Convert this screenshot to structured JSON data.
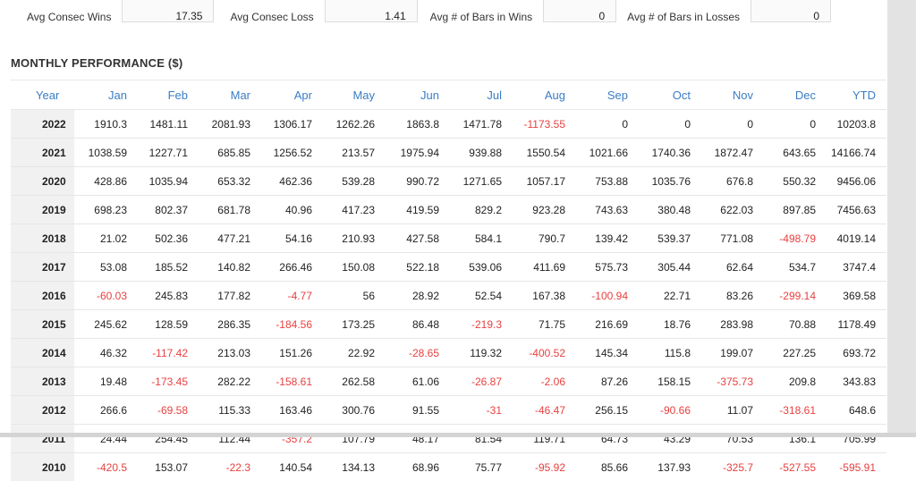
{
  "stats": [
    {
      "label": "Avg Consec Wins",
      "value": "17.35"
    },
    {
      "label": "Avg Consec Loss",
      "value": "1.41"
    },
    {
      "label": "Avg # of Bars in Wins",
      "value": "0"
    },
    {
      "label": "Avg # of Bars in Losses",
      "value": "0"
    }
  ],
  "section_title": "MONTHLY PERFORMANCE ($)",
  "colors": {
    "header": "#3b7dc4",
    "negative": "#e84040",
    "year_bg": "#f1f1f1"
  },
  "table": {
    "headers": [
      "Year",
      "Jan",
      "Feb",
      "Mar",
      "Apr",
      "May",
      "Jun",
      "Jul",
      "Aug",
      "Sep",
      "Oct",
      "Nov",
      "Dec",
      "YTD"
    ],
    "rows": [
      [
        "2022",
        "1910.3",
        "1481.11",
        "2081.93",
        "1306.17",
        "1262.26",
        "1863.8",
        "1471.78",
        "-1173.55",
        "0",
        "0",
        "0",
        "0",
        "10203.8"
      ],
      [
        "2021",
        "1038.59",
        "1227.71",
        "685.85",
        "1256.52",
        "213.57",
        "1975.94",
        "939.88",
        "1550.54",
        "1021.66",
        "1740.36",
        "1872.47",
        "643.65",
        "14166.74"
      ],
      [
        "2020",
        "428.86",
        "1035.94",
        "653.32",
        "462.36",
        "539.28",
        "990.72",
        "1271.65",
        "1057.17",
        "753.88",
        "1035.76",
        "676.8",
        "550.32",
        "9456.06"
      ],
      [
        "2019",
        "698.23",
        "802.37",
        "681.78",
        "40.96",
        "417.23",
        "419.59",
        "829.2",
        "923.28",
        "743.63",
        "380.48",
        "622.03",
        "897.85",
        "7456.63"
      ],
      [
        "2018",
        "21.02",
        "502.36",
        "477.21",
        "54.16",
        "210.93",
        "427.58",
        "584.1",
        "790.7",
        "139.42",
        "539.37",
        "771.08",
        "-498.79",
        "4019.14"
      ],
      [
        "2017",
        "53.08",
        "185.52",
        "140.82",
        "266.46",
        "150.08",
        "522.18",
        "539.06",
        "411.69",
        "575.73",
        "305.44",
        "62.64",
        "534.7",
        "3747.4"
      ],
      [
        "2016",
        "-60.03",
        "245.83",
        "177.82",
        "-4.77",
        "56",
        "28.92",
        "52.54",
        "167.38",
        "-100.94",
        "22.71",
        "83.26",
        "-299.14",
        "369.58"
      ],
      [
        "2015",
        "245.62",
        "128.59",
        "286.35",
        "-184.56",
        "173.25",
        "86.48",
        "-219.3",
        "71.75",
        "216.69",
        "18.76",
        "283.98",
        "70.88",
        "1178.49"
      ],
      [
        "2014",
        "46.32",
        "-117.42",
        "213.03",
        "151.26",
        "22.92",
        "-28.65",
        "119.32",
        "-400.52",
        "145.34",
        "115.8",
        "199.07",
        "227.25",
        "693.72"
      ],
      [
        "2013",
        "19.48",
        "-173.45",
        "282.22",
        "-158.61",
        "262.58",
        "61.06",
        "-26.87",
        "-2.06",
        "87.26",
        "158.15",
        "-375.73",
        "209.8",
        "343.83"
      ],
      [
        "2012",
        "266.6",
        "-69.58",
        "115.33",
        "163.46",
        "300.76",
        "91.55",
        "-31",
        "-46.47",
        "256.15",
        "-90.66",
        "11.07",
        "-318.61",
        "648.6"
      ],
      [
        "2011",
        "24.44",
        "254.45",
        "112.44",
        "-357.2",
        "107.79",
        "48.17",
        "81.54",
        "119.71",
        "64.73",
        "43.29",
        "70.53",
        "136.1",
        "705.99"
      ],
      [
        "2010",
        "-420.5",
        "153.07",
        "-22.3",
        "140.54",
        "134.13",
        "68.96",
        "75.77",
        "-95.92",
        "85.66",
        "137.93",
        "-325.7",
        "-527.55",
        "-595.91"
      ]
    ]
  }
}
